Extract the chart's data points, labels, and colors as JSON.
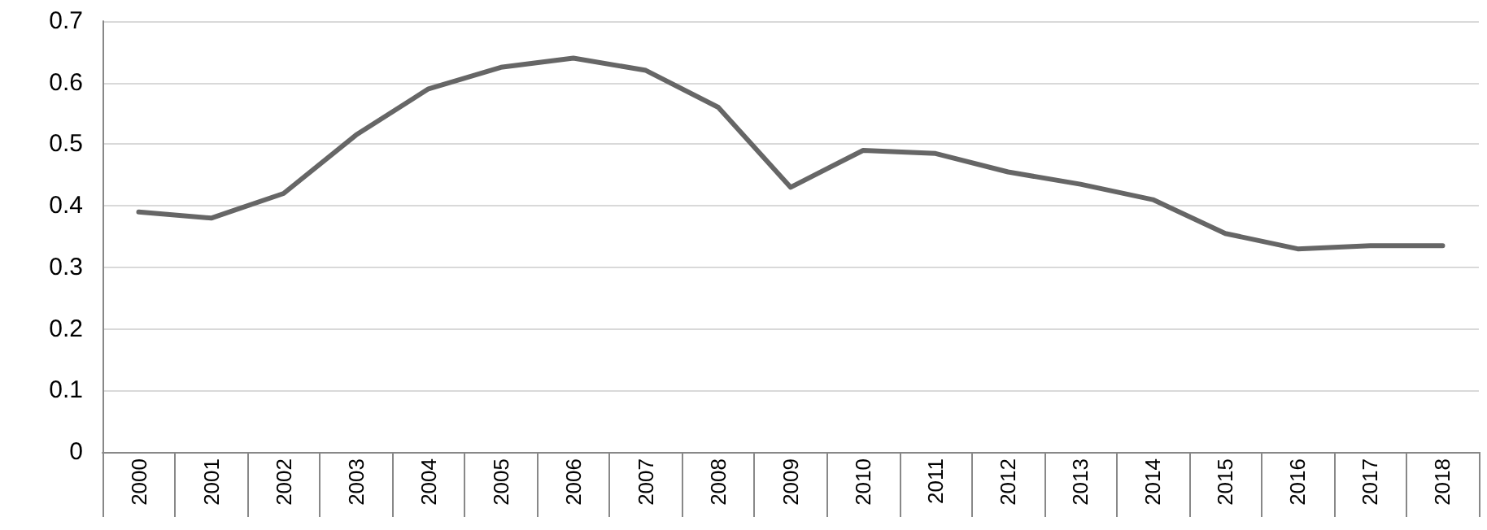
{
  "chart_data": {
    "type": "line",
    "categories": [
      "2000",
      "2001",
      "2002",
      "2003",
      "2004",
      "2005",
      "2006",
      "2007",
      "2008",
      "2009",
      "2010",
      "2011",
      "2012",
      "2013",
      "2014",
      "2015",
      "2016",
      "2017",
      "2018"
    ],
    "series": [
      {
        "color": "#666666",
        "values": [
          0.39,
          0.38,
          0.42,
          0.515,
          0.59,
          0.625,
          0.64,
          0.62,
          0.56,
          0.43,
          0.49,
          0.485,
          0.455,
          0.435,
          0.41,
          0.355,
          0.33,
          0.335,
          0.335
        ]
      }
    ],
    "ylim": [
      0,
      0.7
    ],
    "yticks": [
      0,
      0.1,
      0.2,
      0.3,
      0.4,
      0.5,
      0.6,
      0.7
    ],
    "grid": "y",
    "marker": "none",
    "line_style": "solid"
  }
}
